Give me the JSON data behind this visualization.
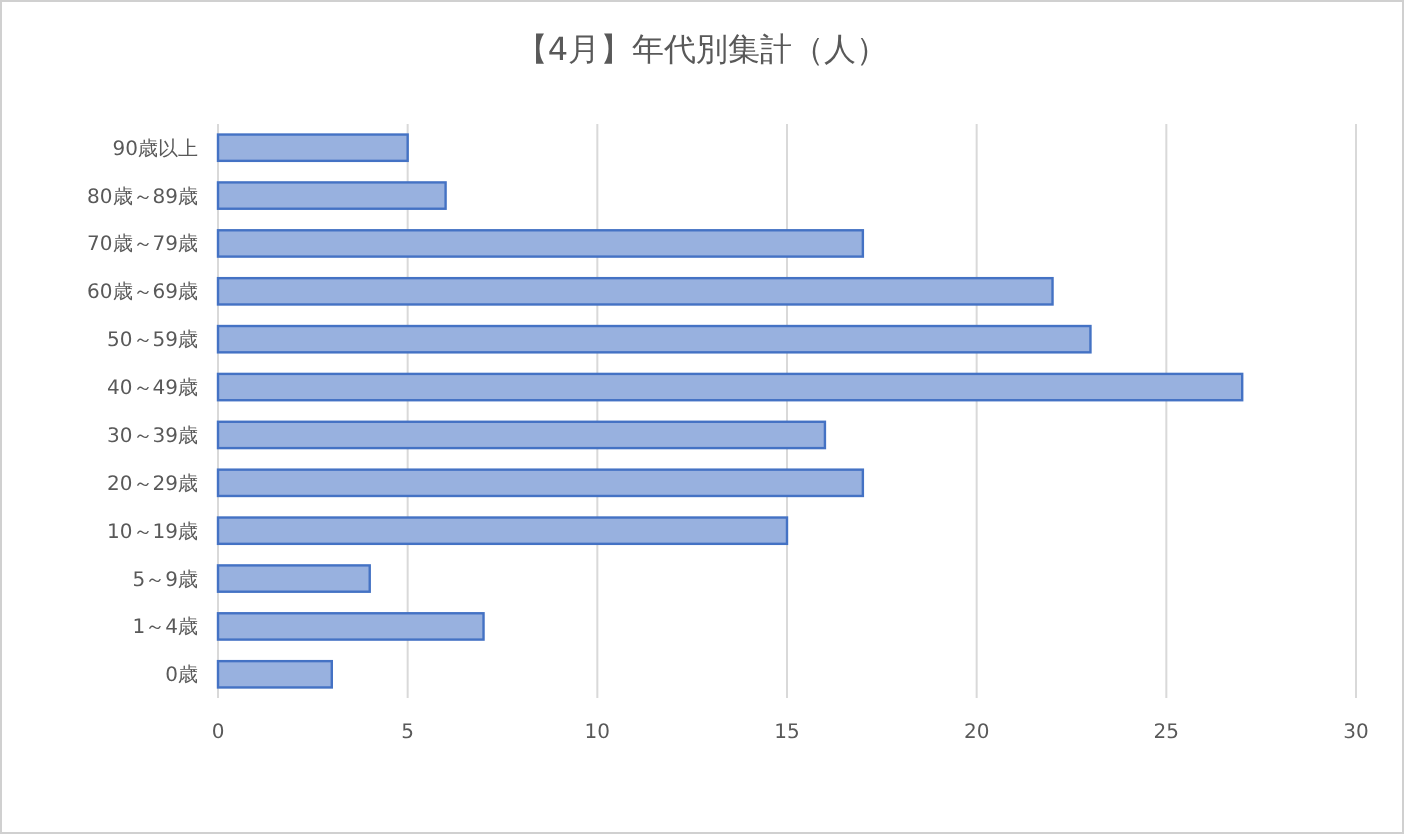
{
  "chart_data": {
    "type": "bar",
    "orientation": "horizontal",
    "title": "【4月】年代別集計（人）",
    "categories": [
      "90歳以上",
      "80歳～89歳",
      "70歳～79歳",
      "60歳～69歳",
      "50～59歳",
      "40～49歳",
      "30～39歳",
      "20～29歳",
      "10～19歳",
      "5～9歳",
      "1～4歳",
      "0歳"
    ],
    "values": [
      5,
      6,
      17,
      22,
      23,
      27,
      16,
      17,
      15,
      4,
      7,
      3
    ],
    "color": "#4472c4",
    "xlim": [
      0,
      30
    ],
    "xticks": [
      0,
      5,
      10,
      15,
      20,
      25,
      30
    ],
    "grid": "x"
  }
}
